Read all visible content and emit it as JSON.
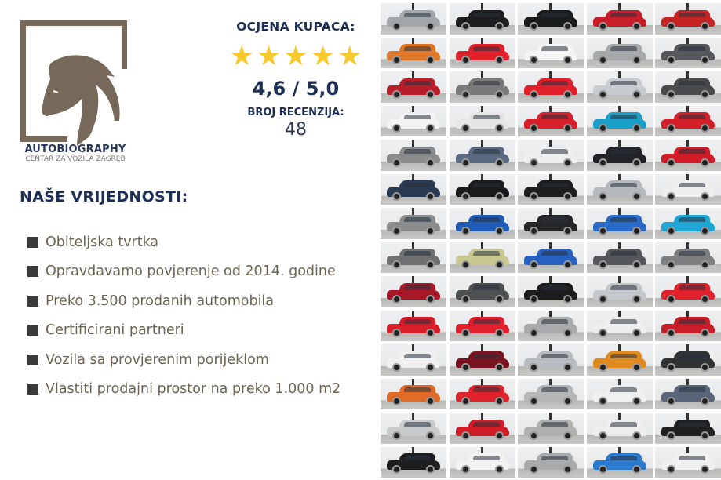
{
  "brand": {
    "name": "AUTOBIOGRAPHY",
    "subtitle": "CENTAR ZA VOZILA ZAGREB",
    "logo_color": "#76695a"
  },
  "rating": {
    "title": "OCJENA KUPACA:",
    "stars": 5,
    "score": "4,6 / 5,0",
    "reviews_label": "BROJ RECENZIJA:",
    "reviews_count": "48",
    "star_color": "#f7c92a"
  },
  "values": {
    "title": "NAŠE VRIJEDNOSTI:",
    "items": [
      "Obiteljska tvrtka",
      "Opravdavamo povjerenje od 2014. godine",
      "Preko 3.500 prodanih automobila",
      "Certificirani partneri",
      "Vozila sa provjerenim porijeklom",
      "Vlastiti prodajni prostor na preko 1.000 m2"
    ]
  },
  "colors": {
    "heading": "#1f2e54",
    "text": "#6d6352"
  },
  "car_grid": [
    [
      "#a3a6aa",
      "#1d1d1f",
      "#1b1c1e",
      "#c81e2a",
      "#c42422"
    ],
    [
      "#e0782a",
      "#e0212b",
      "#f4f4f4",
      "#a7a8aa",
      "#55575b"
    ],
    [
      "#b81e2a",
      "#7c7a78",
      "#e01f2b",
      "#c8ccd0",
      "#4a4a4c"
    ],
    [
      "#f2f2f2",
      "#e6e6e6",
      "#d81f2a",
      "#1aa0c8",
      "#d41f28"
    ],
    [
      "#8a8c8e",
      "#5a6a80",
      "#eeeeee",
      "#222326",
      "#d01c26"
    ],
    [
      "#2a3a52",
      "#1a1a1c",
      "#1e1e20",
      "#b5b8bc",
      "#eeeeee"
    ],
    [
      "#8a8c8e",
      "#1f5cb8",
      "#262628",
      "#2a6ac8",
      "#1ea6d4"
    ],
    [
      "#6e7072",
      "#c8c890",
      "#2860c0",
      "#555659",
      "#7c7e80"
    ],
    [
      "#a81828",
      "#4e5052",
      "#1c1c1e",
      "#c4c8cc",
      "#e0202a"
    ],
    [
      "#d81e28",
      "#e0202c",
      "#a8aaac",
      "#eeeeee",
      "#c81e2a"
    ],
    [
      "#f0f0f0",
      "#7a1420",
      "#b8bcc0",
      "#e08a20",
      "#303234"
    ],
    [
      "#e06a28",
      "#e0222a",
      "#b4b6b8",
      "#f0f0f0",
      "#5a6478"
    ],
    [
      "#c8cacc",
      "#d01e28",
      "#b0b0ae",
      "#eeeeee",
      "#202022"
    ],
    [
      "#1e1e20",
      "#f2f2f2",
      "#a8aaac",
      "#2a7ad0",
      "#f0f0f0"
    ]
  ]
}
